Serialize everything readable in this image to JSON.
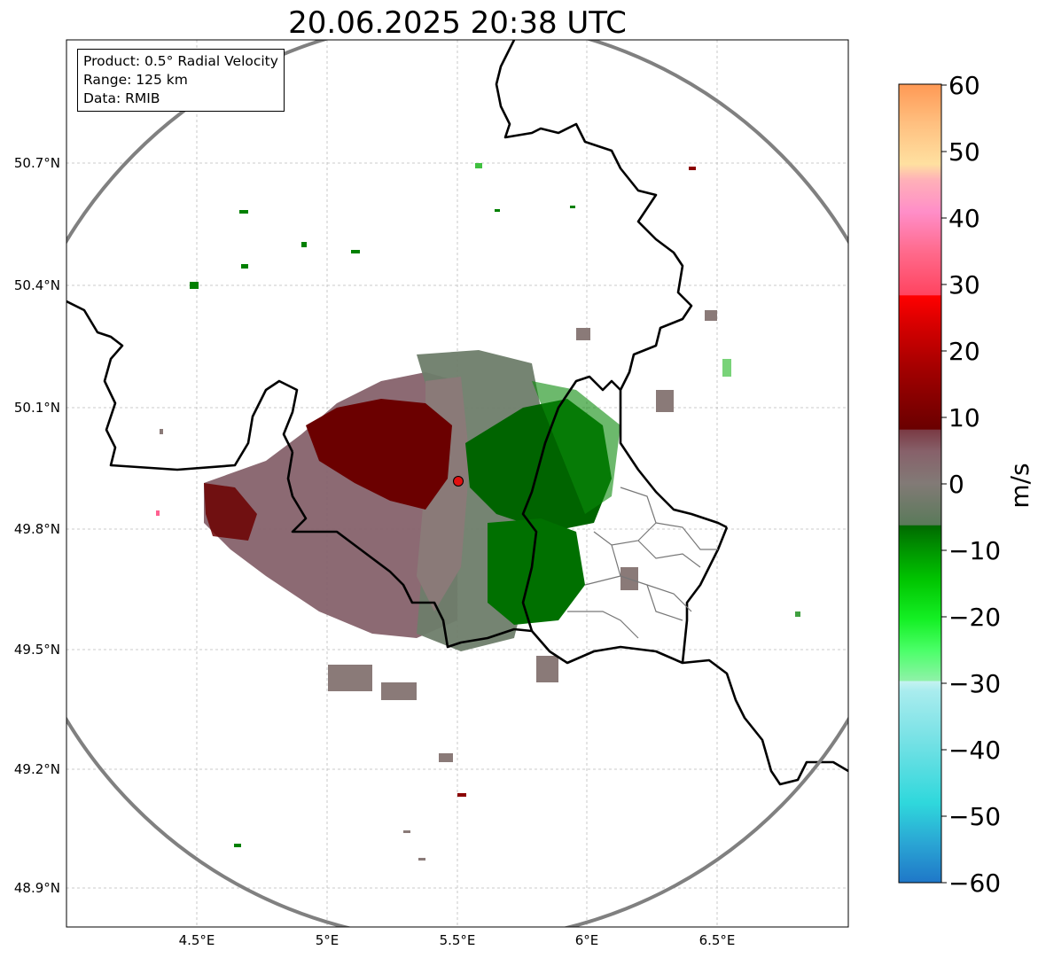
{
  "title": "20.06.2025 20:38 UTC",
  "info": {
    "product": "Product: 0.5° Radial Velocity",
    "range": "Range: 125 km",
    "data": "Data: RMIB"
  },
  "axes": {
    "x_ticks": [
      "4.5°E",
      "5°E",
      "5.5°E",
      "6°E",
      "6.5°E"
    ],
    "y_ticks": [
      "50.7°N",
      "50.4°N",
      "50.1°N",
      "49.8°N",
      "49.5°N",
      "49.2°N",
      "48.9°N"
    ]
  },
  "colorbar": {
    "unit": "m/s",
    "ticks": [
      "60",
      "50",
      "40",
      "30",
      "20",
      "10",
      "0",
      "−10",
      "−20",
      "−30",
      "−40",
      "−50",
      "−60"
    ],
    "range": [
      -60,
      60
    ]
  },
  "radar": {
    "site_lon": 5.505,
    "site_lat": 49.914,
    "range_km": 125,
    "site_color": "#e01010",
    "ring_color": "#808080"
  },
  "colors": {
    "approaching_dark": "#006400",
    "receding_dark": "#6b0000",
    "near_zero": "#8a7a78"
  }
}
